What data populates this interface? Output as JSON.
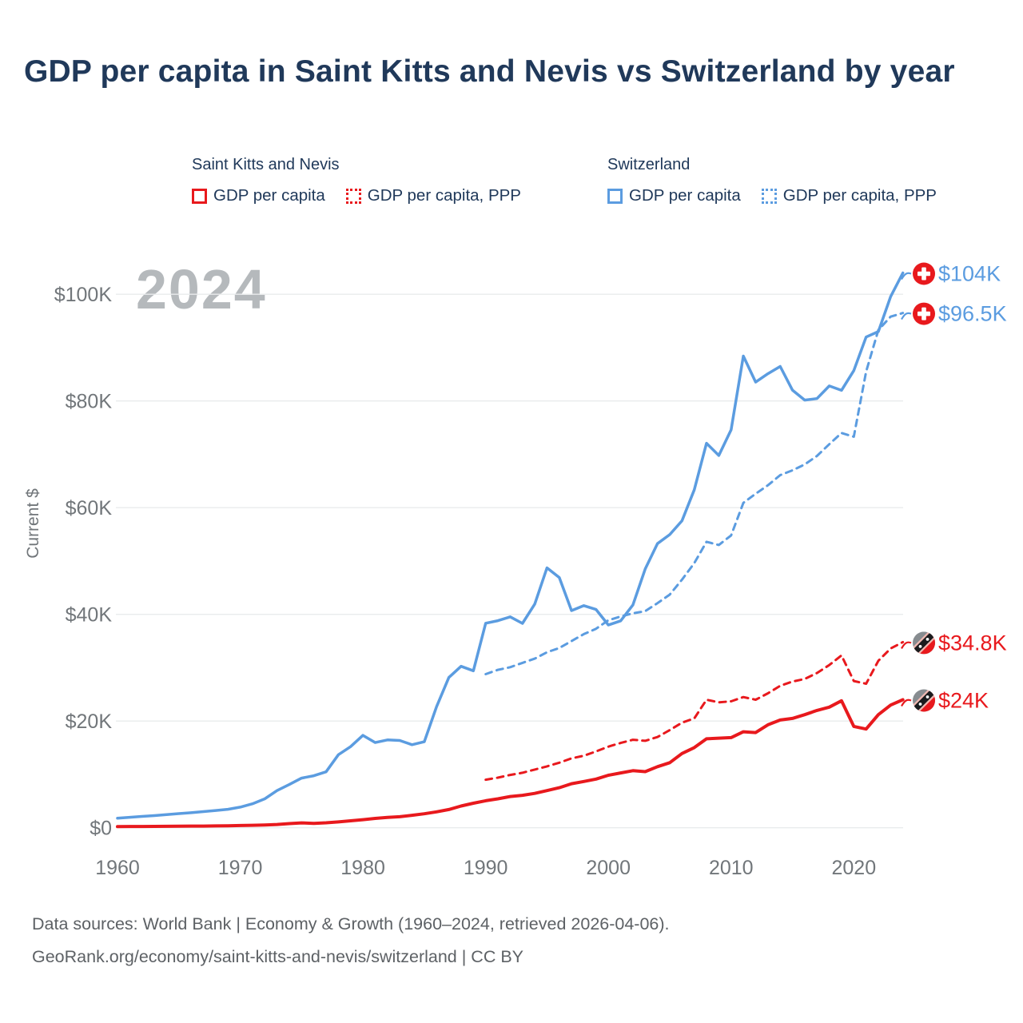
{
  "title": "GDP per capita in Saint Kitts and Nevis vs Switzerland by year",
  "watermark": "2024",
  "colors": {
    "saint_kitts_and_nevis": "#e8191d",
    "switzerland": "#5b9ce0",
    "title_text": "#20395a",
    "axis_text": "#71767a",
    "gridline": "#e9ebec",
    "watermark_text": "#b5b9bc",
    "footer_text": "#5d6165"
  },
  "legend": {
    "groups": [
      {
        "country": "Saint Kitts and Nevis",
        "items": [
          {
            "label": "GDP per capita",
            "style": "solid"
          },
          {
            "label": "GDP per capita, PPP",
            "style": "dotted"
          }
        ]
      },
      {
        "country": "Switzerland",
        "items": [
          {
            "label": "GDP per capita",
            "style": "solid"
          },
          {
            "label": "GDP per capita, PPP",
            "style": "dotted"
          }
        ]
      }
    ]
  },
  "end_labels": [
    {
      "text": "$104K",
      "flag": "switzerland",
      "color": "#5b9ce0",
      "value": 104
    },
    {
      "text": "$96.5K",
      "flag": "switzerland",
      "color": "#5b9ce0",
      "value": 96.5
    },
    {
      "text": "$34.8K",
      "flag": "saint-kitts-and-nevis",
      "color": "#e8191d",
      "value": 34.8
    },
    {
      "text": "$24K",
      "flag": "saint-kitts-and-nevis",
      "color": "#e8191d",
      "value": 24
    }
  ],
  "footer": {
    "line1": "Data sources: World Bank | Economy & Growth (1960–2024, retrieved 2026-04-06).",
    "line2": "GeoRank.org/economy/saint-kitts-and-nevis/switzerland | CC BY"
  },
  "chart_data": {
    "type": "line",
    "title": "GDP per capita in Saint Kitts and Nevis vs Switzerland by year",
    "xlabel": "",
    "ylabel": "Current $",
    "xlim": [
      1959.5,
      2024.5
    ],
    "ylim": [
      0,
      110
    ],
    "grid": true,
    "legend_position": "top",
    "y_ticks": [
      {
        "v": 0,
        "label": "$0"
      },
      {
        "v": 20,
        "label": "$20K"
      },
      {
        "v": 40,
        "label": "$40K"
      },
      {
        "v": 60,
        "label": "$60K"
      },
      {
        "v": 80,
        "label": "$80K"
      },
      {
        "v": 100,
        "label": "$100K"
      }
    ],
    "x_ticks": [
      {
        "v": 1960,
        "label": "1960"
      },
      {
        "v": 1970,
        "label": "1970"
      },
      {
        "v": 1980,
        "label": "1980"
      },
      {
        "v": 1990,
        "label": "1990"
      },
      {
        "v": 2000,
        "label": "2000"
      },
      {
        "v": 2010,
        "label": "2010"
      },
      {
        "v": 2020,
        "label": "2020"
      }
    ],
    "x": [
      1960,
      1961,
      1962,
      1963,
      1964,
      1965,
      1966,
      1967,
      1968,
      1969,
      1970,
      1971,
      1972,
      1973,
      1974,
      1975,
      1976,
      1977,
      1978,
      1979,
      1980,
      1981,
      1982,
      1983,
      1984,
      1985,
      1986,
      1987,
      1988,
      1989,
      1990,
      1991,
      1992,
      1993,
      1994,
      1995,
      1996,
      1997,
      1998,
      1999,
      2000,
      2001,
      2002,
      2003,
      2004,
      2005,
      2006,
      2007,
      2008,
      2009,
      2010,
      2011,
      2012,
      2013,
      2014,
      2015,
      2016,
      2017,
      2018,
      2019,
      2020,
      2021,
      2022,
      2023,
      2024
    ],
    "units": "thousands of current US$",
    "series": [
      {
        "name": "Switzerland — GDP per capita",
        "color": "#5b9ce0",
        "dash": "solid",
        "width": 3.5,
        "values": [
          1.79,
          1.97,
          2.13,
          2.28,
          2.47,
          2.65,
          2.82,
          3.02,
          3.23,
          3.46,
          3.87,
          4.49,
          5.42,
          6.96,
          8.11,
          9.3,
          9.76,
          10.49,
          13.7,
          15.21,
          17.32,
          15.97,
          16.46,
          16.36,
          15.57,
          16.12,
          22.68,
          28.17,
          30.26,
          29.43,
          38.33,
          38.81,
          39.54,
          38.3,
          41.93,
          48.72,
          46.91,
          40.7,
          41.63,
          40.92,
          38.01,
          38.79,
          41.77,
          48.51,
          53.26,
          54.95,
          57.55,
          63.35,
          72.08,
          69.78,
          74.6,
          88.42,
          83.54,
          85.11,
          86.47,
          82.04,
          80.17,
          80.45,
          82.82,
          81.99,
          85.69,
          91.99,
          93.01,
          99.56,
          104.0
        ]
      },
      {
        "name": "Switzerland — GDP per capita, PPP",
        "color": "#5b9ce0",
        "dash": "dashed",
        "width": 3,
        "values": [
          null,
          null,
          null,
          null,
          null,
          null,
          null,
          null,
          null,
          null,
          null,
          null,
          null,
          null,
          null,
          null,
          null,
          null,
          null,
          null,
          null,
          null,
          null,
          null,
          null,
          null,
          null,
          null,
          null,
          null,
          28.8,
          29.6,
          30.1,
          30.9,
          31.7,
          32.9,
          33.7,
          35.0,
          36.3,
          37.3,
          38.9,
          39.6,
          40.2,
          40.6,
          42.1,
          43.7,
          46.5,
          49.6,
          53.6,
          53.0,
          54.8,
          60.9,
          62.6,
          64.2,
          66.1,
          67.0,
          68.1,
          69.7,
          71.9,
          74.0,
          73.3,
          85.5,
          93.3,
          95.8,
          96.5
        ]
      },
      {
        "name": "Saint Kitts and Nevis — GDP per capita, PPP",
        "color": "#e8191d",
        "dash": "dashed",
        "width": 3,
        "values": [
          null,
          null,
          null,
          null,
          null,
          null,
          null,
          null,
          null,
          null,
          null,
          null,
          null,
          null,
          null,
          null,
          null,
          null,
          null,
          null,
          null,
          null,
          null,
          null,
          null,
          null,
          null,
          null,
          null,
          null,
          9.0,
          9.4,
          9.9,
          10.3,
          10.9,
          11.5,
          12.2,
          13.0,
          13.5,
          14.3,
          15.2,
          15.9,
          16.5,
          16.3,
          17.0,
          18.3,
          19.7,
          20.5,
          24.0,
          23.5,
          23.7,
          24.5,
          24.0,
          25.2,
          26.6,
          27.4,
          27.9,
          29.0,
          30.5,
          32.3,
          27.5,
          27.0,
          31.3,
          33.6,
          34.8
        ]
      },
      {
        "name": "Saint Kitts and Nevis — GDP per capita",
        "color": "#e8191d",
        "dash": "solid",
        "width": 4,
        "values": [
          0.23,
          0.24,
          0.24,
          0.25,
          0.27,
          0.29,
          0.31,
          0.32,
          0.34,
          0.38,
          0.42,
          0.46,
          0.52,
          0.62,
          0.78,
          0.92,
          0.83,
          0.93,
          1.1,
          1.3,
          1.52,
          1.76,
          1.94,
          2.06,
          2.33,
          2.62,
          2.98,
          3.42,
          4.07,
          4.6,
          5.06,
          5.42,
          5.86,
          6.08,
          6.44,
          6.96,
          7.5,
          8.26,
          8.67,
          9.12,
          9.85,
          10.28,
          10.7,
          10.52,
          11.45,
          12.2,
          13.92,
          15.02,
          16.68,
          16.8,
          16.9,
          18.0,
          17.85,
          19.3,
          20.2,
          20.5,
          21.2,
          22.0,
          22.6,
          23.8,
          19.0,
          18.5,
          21.2,
          23.0,
          24.0
        ]
      }
    ]
  }
}
